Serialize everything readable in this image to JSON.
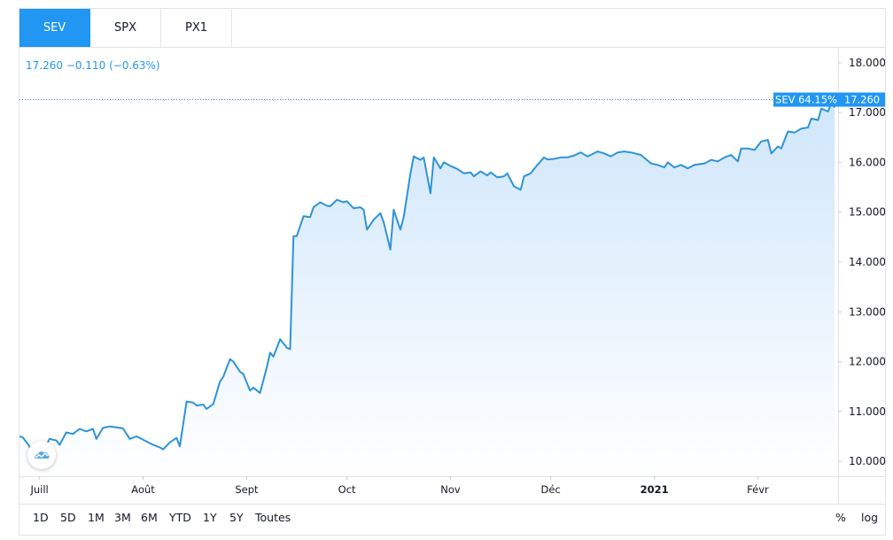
{
  "tabs": [
    {
      "label": "SEV",
      "active": true
    },
    {
      "label": "SPX",
      "active": false
    },
    {
      "label": "PX1",
      "active": false
    }
  ],
  "quote": {
    "price": "17.260",
    "change": "−0.110",
    "change_pct": "(−0.63%)"
  },
  "last_label": {
    "name": "SEV",
    "pct": "64.15%",
    "price": "17.260"
  },
  "range_buttons": [
    "1D",
    "5D",
    "1M",
    "3M",
    "6M",
    "YTD",
    "1Y",
    "5Y",
    "Toutes"
  ],
  "scale_buttons": [
    "%",
    "log"
  ],
  "colors": {
    "line": "#2e93d8",
    "accent": "#2196f3",
    "fill_top": "#cfe6fb"
  },
  "chart_data": {
    "type": "area",
    "title": "",
    "xlabel": "",
    "ylabel": "",
    "ylim": [
      9.7,
      18.3
    ],
    "y_ticks": [
      "18.000",
      "17.000",
      "16.000",
      "15.000",
      "14.000",
      "13.000",
      "12.000",
      "11.000",
      "10.000"
    ],
    "y_tick_values": [
      18,
      17,
      16,
      15,
      14,
      13,
      12,
      11,
      10
    ],
    "x_tick_labels": [
      {
        "label": "Juill",
        "date": "2020-07-01"
      },
      {
        "label": "Août",
        "date": "2020-08-01"
      },
      {
        "label": "Sept",
        "date": "2020-09-01"
      },
      {
        "label": "Oct",
        "date": "2020-10-01"
      },
      {
        "label": "Nov",
        "date": "2020-11-01"
      },
      {
        "label": "Déc",
        "date": "2020-12-01"
      },
      {
        "label": "2021",
        "date": "2021-01-01",
        "bold": true
      },
      {
        "label": "Févr",
        "date": "2021-02-01"
      }
    ],
    "xlim": [
      "2020-06-25",
      "2021-02-25"
    ],
    "series": [
      {
        "points": [
          [
            "2020-06-25",
            10.5
          ],
          [
            "2020-06-26",
            10.48
          ],
          [
            "2020-06-28",
            10.3
          ],
          [
            "2020-06-29",
            10.06
          ],
          [
            "2020-07-01",
            10.15
          ],
          [
            "2020-07-02",
            10.2
          ],
          [
            "2020-07-04",
            10.45
          ],
          [
            "2020-07-06",
            10.42
          ],
          [
            "2020-07-07",
            10.33
          ],
          [
            "2020-07-09",
            10.58
          ],
          [
            "2020-07-11",
            10.55
          ],
          [
            "2020-07-13",
            10.65
          ],
          [
            "2020-07-15",
            10.6
          ],
          [
            "2020-07-17",
            10.65
          ],
          [
            "2020-07-18",
            10.45
          ],
          [
            "2020-07-20",
            10.67
          ],
          [
            "2020-07-22",
            10.7
          ],
          [
            "2020-07-24",
            10.68
          ],
          [
            "2020-07-26",
            10.66
          ],
          [
            "2020-07-28",
            10.45
          ],
          [
            "2020-07-30",
            10.5
          ],
          [
            "2020-07-31",
            10.47
          ],
          [
            "2020-08-02",
            10.4
          ],
          [
            "2020-08-04",
            10.33
          ],
          [
            "2020-08-06",
            10.28
          ],
          [
            "2020-08-07",
            10.24
          ],
          [
            "2020-08-09",
            10.38
          ],
          [
            "2020-08-11",
            10.47
          ],
          [
            "2020-08-12",
            10.3
          ],
          [
            "2020-08-14",
            11.2
          ],
          [
            "2020-08-16",
            11.18
          ],
          [
            "2020-08-17",
            11.12
          ],
          [
            "2020-08-19",
            11.14
          ],
          [
            "2020-08-20",
            11.05
          ],
          [
            "2020-08-22",
            11.15
          ],
          [
            "2020-08-24",
            11.6
          ],
          [
            "2020-08-25",
            11.7
          ],
          [
            "2020-08-27",
            12.05
          ],
          [
            "2020-08-28",
            12.0
          ],
          [
            "2020-08-30",
            11.8
          ],
          [
            "2020-08-31",
            11.75
          ],
          [
            "2020-09-02",
            11.42
          ],
          [
            "2020-09-03",
            11.48
          ],
          [
            "2020-09-05",
            11.37
          ],
          [
            "2020-09-07",
            11.88
          ],
          [
            "2020-09-08",
            12.18
          ],
          [
            "2020-09-09",
            12.1
          ],
          [
            "2020-09-11",
            12.45
          ],
          [
            "2020-09-13",
            12.28
          ],
          [
            "2020-09-14",
            12.25
          ],
          [
            "2020-09-15",
            14.52
          ],
          [
            "2020-09-16",
            14.52
          ],
          [
            "2020-09-18",
            14.92
          ],
          [
            "2020-09-20",
            14.9
          ],
          [
            "2020-09-21",
            15.1
          ],
          [
            "2020-09-23",
            15.2
          ],
          [
            "2020-09-25",
            15.13
          ],
          [
            "2020-09-26",
            15.12
          ],
          [
            "2020-09-28",
            15.25
          ],
          [
            "2020-09-30",
            15.2
          ],
          [
            "2020-10-01",
            15.22
          ],
          [
            "2020-10-03",
            15.08
          ],
          [
            "2020-10-05",
            15.1
          ],
          [
            "2020-10-06",
            15.05
          ],
          [
            "2020-10-07",
            14.65
          ],
          [
            "2020-10-09",
            14.85
          ],
          [
            "2020-10-11",
            14.98
          ],
          [
            "2020-10-12",
            14.8
          ],
          [
            "2020-10-14",
            14.25
          ],
          [
            "2020-10-15",
            15.05
          ],
          [
            "2020-10-17",
            14.65
          ],
          [
            "2020-10-18",
            14.9
          ],
          [
            "2020-10-20",
            15.78
          ],
          [
            "2020-10-21",
            16.12
          ],
          [
            "2020-10-23",
            16.05
          ],
          [
            "2020-10-24",
            16.1
          ],
          [
            "2020-10-26",
            15.38
          ],
          [
            "2020-10-27",
            16.1
          ],
          [
            "2020-10-29",
            15.88
          ],
          [
            "2020-10-30",
            16.0
          ],
          [
            "2020-11-01",
            15.93
          ],
          [
            "2020-11-03",
            15.87
          ],
          [
            "2020-11-05",
            15.78
          ],
          [
            "2020-11-07",
            15.8
          ],
          [
            "2020-11-08",
            15.72
          ],
          [
            "2020-11-10",
            15.82
          ],
          [
            "2020-11-12",
            15.74
          ],
          [
            "2020-11-13",
            15.8
          ],
          [
            "2020-11-15",
            15.7
          ],
          [
            "2020-11-17",
            15.72
          ],
          [
            "2020-11-18",
            15.78
          ],
          [
            "2020-11-20",
            15.52
          ],
          [
            "2020-11-22",
            15.45
          ],
          [
            "2020-11-23",
            15.72
          ],
          [
            "2020-11-25",
            15.78
          ],
          [
            "2020-11-27",
            15.95
          ],
          [
            "2020-11-29",
            16.1
          ],
          [
            "2020-11-30",
            16.06
          ],
          [
            "2020-12-02",
            16.07
          ],
          [
            "2020-12-04",
            16.1
          ],
          [
            "2020-12-06",
            16.1
          ],
          [
            "2020-12-08",
            16.14
          ],
          [
            "2020-12-10",
            16.2
          ],
          [
            "2020-12-12",
            16.12
          ],
          [
            "2020-12-13",
            16.15
          ],
          [
            "2020-12-15",
            16.22
          ],
          [
            "2020-12-17",
            16.18
          ],
          [
            "2020-12-19",
            16.12
          ],
          [
            "2020-12-21",
            16.2
          ],
          [
            "2020-12-23",
            16.22
          ],
          [
            "2020-12-25",
            16.2
          ],
          [
            "2020-12-28",
            16.15
          ],
          [
            "2020-12-31",
            15.98
          ],
          [
            "2021-01-02",
            15.95
          ],
          [
            "2021-01-04",
            15.9
          ],
          [
            "2021-01-05",
            16.0
          ],
          [
            "2021-01-07",
            15.9
          ],
          [
            "2021-01-09",
            15.95
          ],
          [
            "2021-01-11",
            15.88
          ],
          [
            "2021-01-13",
            15.95
          ],
          [
            "2021-01-16",
            15.98
          ],
          [
            "2021-01-18",
            16.05
          ],
          [
            "2021-01-20",
            16.02
          ],
          [
            "2021-01-22",
            16.1
          ],
          [
            "2021-01-24",
            16.15
          ],
          [
            "2021-01-26",
            16.02
          ],
          [
            "2021-01-27",
            16.28
          ],
          [
            "2021-01-29",
            16.28
          ],
          [
            "2021-01-31",
            16.25
          ],
          [
            "2021-02-02",
            16.42
          ],
          [
            "2021-02-04",
            16.45
          ],
          [
            "2021-02-05",
            16.18
          ],
          [
            "2021-02-07",
            16.32
          ],
          [
            "2021-02-08",
            16.28
          ],
          [
            "2021-02-10",
            16.62
          ],
          [
            "2021-02-12",
            16.6
          ],
          [
            "2021-02-14",
            16.68
          ],
          [
            "2021-02-16",
            16.7
          ],
          [
            "2021-02-17",
            16.88
          ],
          [
            "2021-02-19",
            16.85
          ],
          [
            "2021-02-20",
            17.08
          ],
          [
            "2021-02-22",
            17.02
          ],
          [
            "2021-02-23",
            17.2
          ],
          [
            "2021-02-24",
            17.1
          ]
        ]
      }
    ]
  }
}
